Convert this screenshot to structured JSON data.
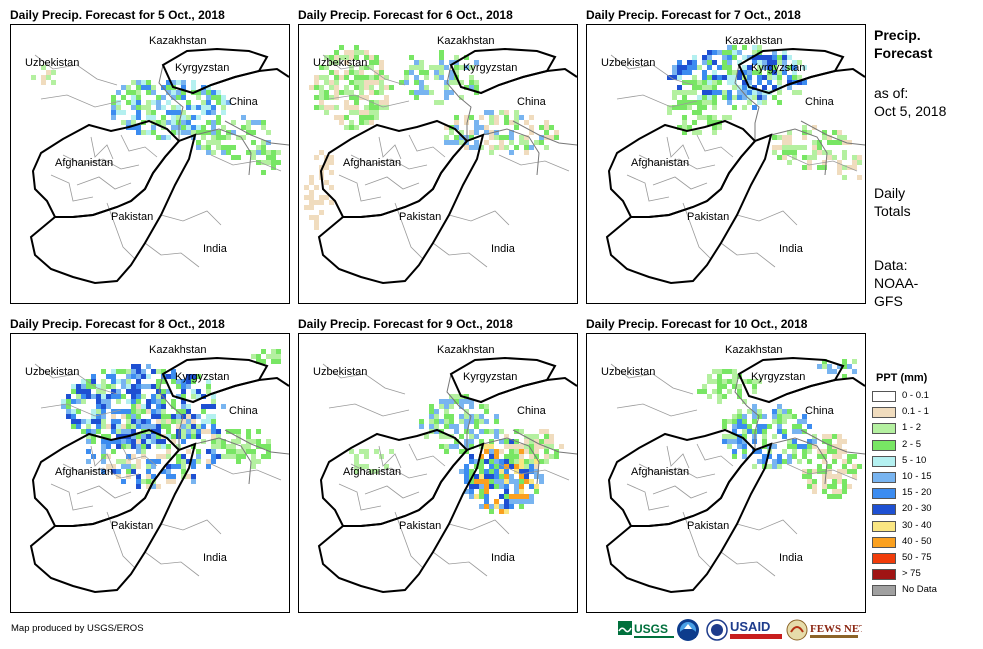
{
  "panels": [
    {
      "title": "Daily Precip. Forecast for 5 Oct., 2018",
      "day": 5
    },
    {
      "title": "Daily Precip. Forecast for 6 Oct., 2018",
      "day": 6
    },
    {
      "title": "Daily Precip. Forecast for 7 Oct., 2018",
      "day": 7
    },
    {
      "title": "Daily Precip. Forecast for 8 Oct., 2018",
      "day": 8
    },
    {
      "title": "Daily Precip. Forecast for 9 Oct., 2018",
      "day": 9
    },
    {
      "title": "Daily Precip. Forecast for 10 Oct., 2018",
      "day": 10
    }
  ],
  "countries": [
    "Kazakhstan",
    "Uzbekistan",
    "Kyrgyzstan",
    "China",
    "Afghanistan",
    "Pakistan",
    "India"
  ],
  "side": {
    "title_line1": "Precip.",
    "title_line2": "Forecast",
    "asof_line1": "as of:",
    "asof_line2": "Oct 5, 2018",
    "daily_line1": "Daily",
    "daily_line2": "Totals",
    "data_line1": "Data:",
    "data_line2": "NOAA-",
    "data_line3": "GFS"
  },
  "legend": {
    "title": "PPT (mm)",
    "items": [
      {
        "label": "0 - 0.1",
        "color": "#ffffff"
      },
      {
        "label": "0.1 - 1",
        "color": "#f0dcbe"
      },
      {
        "label": "1 - 2",
        "color": "#b4f0a0"
      },
      {
        "label": "2 - 5",
        "color": "#78e664"
      },
      {
        "label": "5 - 10",
        "color": "#b4f0f0"
      },
      {
        "label": "10 - 15",
        "color": "#78b4f0"
      },
      {
        "label": "15 - 20",
        "color": "#3c8cf0"
      },
      {
        "label": "20 - 30",
        "color": "#1e50d2"
      },
      {
        "label": "30 - 40",
        "color": "#fae682"
      },
      {
        "label": "40 - 50",
        "color": "#faa01e"
      },
      {
        "label": "50 - 75",
        "color": "#f03c0a"
      },
      {
        "label": "> 75",
        "color": "#a01414"
      },
      {
        "label": "No Data",
        "color": "#a0a0a0"
      }
    ]
  },
  "credit": "Map produced by USGS/EROS",
  "logos": [
    "USGS",
    "NOAA",
    "USAID",
    "FEWS NET"
  ]
}
